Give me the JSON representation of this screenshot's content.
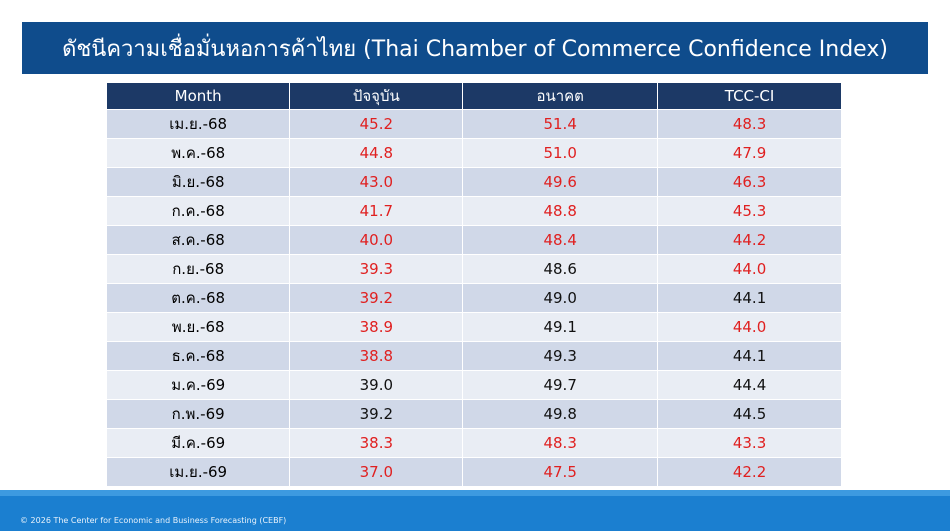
{
  "header": {
    "title": "ดัชนีความเชื่อมั่นหอการค้าไทย (Thai Chamber of Commerce Confidence Index)"
  },
  "table": {
    "columns": [
      "Month",
      "ปัจจุบัน",
      "อนาคต",
      "TCC-CI"
    ],
    "rows": [
      {
        "month": "เม.ย.-68",
        "values": [
          "45.2",
          "51.4",
          "48.3"
        ],
        "colors": [
          "#e02020",
          "#e02020",
          "#e02020"
        ]
      },
      {
        "month": "พ.ค.-68",
        "values": [
          "44.8",
          "51.0",
          "47.9"
        ],
        "colors": [
          "#e02020",
          "#e02020",
          "#e02020"
        ]
      },
      {
        "month": "มิ.ย.-68",
        "values": [
          "43.0",
          "49.6",
          "46.3"
        ],
        "colors": [
          "#e02020",
          "#e02020",
          "#e02020"
        ]
      },
      {
        "month": "ก.ค.-68",
        "values": [
          "41.7",
          "48.8",
          "45.3"
        ],
        "colors": [
          "#e02020",
          "#e02020",
          "#e02020"
        ]
      },
      {
        "month": "ส.ค.-68",
        "values": [
          "40.0",
          "48.4",
          "44.2"
        ],
        "colors": [
          "#e02020",
          "#e02020",
          "#e02020"
        ]
      },
      {
        "month": "ก.ย.-68",
        "values": [
          "39.3",
          "48.6",
          "44.0"
        ],
        "colors": [
          "#e02020",
          "#111111",
          "#e02020"
        ]
      },
      {
        "month": "ต.ค.-68",
        "values": [
          "39.2",
          "49.0",
          "44.1"
        ],
        "colors": [
          "#e02020",
          "#111111",
          "#111111"
        ]
      },
      {
        "month": "พ.ย.-68",
        "values": [
          "38.9",
          "49.1",
          "44.0"
        ],
        "colors": [
          "#e02020",
          "#111111",
          "#e02020"
        ]
      },
      {
        "month": "ธ.ค.-68",
        "values": [
          "38.8",
          "49.3",
          "44.1"
        ],
        "colors": [
          "#e02020",
          "#111111",
          "#111111"
        ]
      },
      {
        "month": "ม.ค.-69",
        "values": [
          "39.0",
          "49.7",
          "44.4"
        ],
        "colors": [
          "#111111",
          "#111111",
          "#111111"
        ]
      },
      {
        "month": "ก.พ.-69",
        "values": [
          "39.2",
          "49.8",
          "44.5"
        ],
        "colors": [
          "#111111",
          "#111111",
          "#111111"
        ]
      },
      {
        "month": "มี.ค.-69",
        "values": [
          "38.3",
          "48.3",
          "43.3"
        ],
        "colors": [
          "#e02020",
          "#e02020",
          "#e02020"
        ]
      },
      {
        "month": "เม.ย.-69",
        "values": [
          "37.0",
          "47.5",
          "42.2"
        ],
        "colors": [
          "#e02020",
          "#e02020",
          "#e02020"
        ]
      }
    ]
  },
  "footer": {
    "text": "© 2026 The Center for Economic and Business Forecasting (CEBF)"
  }
}
